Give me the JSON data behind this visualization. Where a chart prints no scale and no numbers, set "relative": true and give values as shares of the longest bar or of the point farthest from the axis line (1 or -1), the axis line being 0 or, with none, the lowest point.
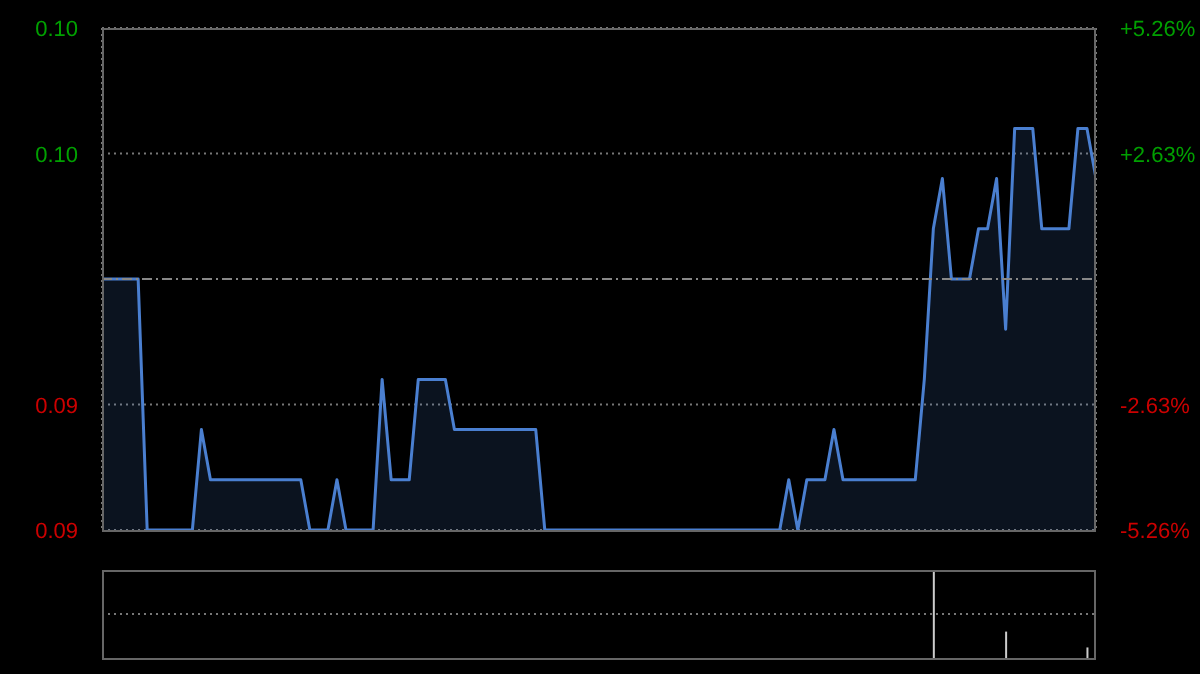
{
  "chart_data": [
    {
      "type": "area",
      "categories": [
        null,
        null,
        null,
        null,
        null,
        null,
        null,
        null,
        null,
        null,
        null,
        null,
        null,
        null,
        null,
        null,
        null,
        null,
        null,
        null,
        null,
        null,
        null,
        null,
        null,
        null,
        null,
        null,
        null,
        null,
        null,
        null,
        null,
        null,
        null,
        null,
        null,
        null,
        null,
        null,
        null,
        null,
        null,
        null,
        null,
        null,
        null,
        null,
        null,
        null,
        null,
        null,
        null,
        null,
        null,
        null,
        null,
        null,
        null,
        null,
        null,
        null,
        null,
        null,
        null,
        null,
        null,
        null,
        null,
        null,
        null,
        null,
        null,
        null,
        null,
        null,
        null,
        null,
        null,
        null,
        null,
        null,
        null,
        null,
        null,
        null,
        null,
        null,
        null,
        null,
        null,
        null,
        null,
        null,
        null,
        null,
        null,
        null,
        null,
        null,
        null,
        null,
        null,
        null,
        null,
        null,
        null,
        null,
        null,
        null,
        null
      ],
      "series": [
        {
          "color": "#4a7fd0",
          "values": [
            0.095,
            0.095,
            0.095,
            0.095,
            0.095,
            0.09,
            0.09,
            0.09,
            0.09,
            0.09,
            0.09,
            0.092,
            0.091,
            0.091,
            0.091,
            0.091,
            0.091,
            0.091,
            0.091,
            0.091,
            0.091,
            0.091,
            0.091,
            0.09,
            0.09,
            0.09,
            0.091,
            0.09,
            0.09,
            0.09,
            0.09,
            0.093,
            0.091,
            0.091,
            0.091,
            0.093,
            0.093,
            0.093,
            0.093,
            0.092,
            0.092,
            0.092,
            0.092,
            0.092,
            0.092,
            0.092,
            0.092,
            0.092,
            0.092,
            0.09,
            0.09,
            0.09,
            0.09,
            0.09,
            0.09,
            0.09,
            0.09,
            0.09,
            0.09,
            0.09,
            0.09,
            0.09,
            0.09,
            0.09,
            0.09,
            0.09,
            0.09,
            0.09,
            0.09,
            0.09,
            0.09,
            0.09,
            0.09,
            0.09,
            0.09,
            0.09,
            0.091,
            0.09,
            0.091,
            0.091,
            0.091,
            0.092,
            0.091,
            0.091,
            0.091,
            0.091,
            0.091,
            0.091,
            0.091,
            0.091,
            0.091,
            0.093,
            0.096,
            0.097,
            0.095,
            0.095,
            0.095,
            0.096,
            0.096,
            0.097,
            0.094,
            0.098,
            0.098,
            0.098,
            0.096,
            0.096,
            0.096,
            0.096,
            0.098,
            0.098,
            0.097
          ]
        }
      ],
      "ylim": [
        0.09,
        0.1
      ],
      "yticks": [
        {
          "value": 0.1,
          "label": "0.10"
        },
        {
          "value": 0.0975,
          "label": "0.10"
        },
        {
          "value": 0.0925,
          "label": "0.09"
        },
        {
          "value": 0.09,
          "label": "0.09"
        }
      ],
      "y2lim": [
        -5.26,
        5.26
      ],
      "y2ticks": [
        {
          "value": 5.26,
          "label": "+5.26%"
        },
        {
          "value": 2.63,
          "label": "+2.63%"
        },
        {
          "value": -2.63,
          "label": "-2.63%"
        },
        {
          "value": -5.26,
          "label": "-5.26%"
        }
      ],
      "ref_lines": [
        {
          "axis": "y",
          "value": 0.095,
          "color": "#888888",
          "line_style": "dashed"
        }
      ],
      "grid": true,
      "marker": "none",
      "line_style": "solid",
      "legend": false
    },
    {
      "type": "bar",
      "relative": true,
      "categories": [
        null,
        null,
        null,
        null,
        null,
        null,
        null,
        null,
        null,
        null,
        null,
        null,
        null,
        null,
        null,
        null,
        null,
        null,
        null,
        null,
        null,
        null,
        null,
        null,
        null,
        null,
        null,
        null,
        null,
        null,
        null,
        null,
        null,
        null,
        null,
        null,
        null,
        null,
        null,
        null,
        null,
        null,
        null,
        null,
        null,
        null,
        null,
        null,
        null,
        null,
        null,
        null,
        null,
        null,
        null,
        null,
        null,
        null,
        null,
        null,
        null,
        null,
        null,
        null,
        null,
        null,
        null,
        null,
        null,
        null,
        null,
        null,
        null,
        null,
        null,
        null,
        null,
        null,
        null,
        null,
        null,
        null,
        null,
        null,
        null,
        null,
        null,
        null,
        null,
        null,
        null,
        null,
        null,
        null,
        null,
        null,
        null,
        null,
        null,
        null,
        null,
        null,
        null,
        null,
        null,
        null,
        null,
        null,
        null,
        null,
        null
      ],
      "series": [
        {
          "color": "#cccccc",
          "values": [
            null,
            null,
            null,
            null,
            null,
            null,
            null,
            null,
            null,
            null,
            null,
            null,
            null,
            null,
            null,
            null,
            null,
            null,
            null,
            null,
            null,
            null,
            null,
            null,
            null,
            null,
            null,
            null,
            null,
            null,
            null,
            null,
            null,
            null,
            null,
            null,
            null,
            null,
            null,
            null,
            null,
            null,
            null,
            null,
            null,
            null,
            null,
            null,
            null,
            null,
            null,
            null,
            null,
            null,
            null,
            null,
            null,
            null,
            null,
            null,
            null,
            null,
            null,
            null,
            null,
            null,
            null,
            null,
            null,
            null,
            null,
            null,
            null,
            null,
            null,
            null,
            null,
            null,
            null,
            null,
            null,
            null,
            null,
            null,
            null,
            null,
            null,
            null,
            null,
            null,
            null,
            null,
            1,
            null,
            null,
            null,
            null,
            null,
            null,
            null,
            0.3,
            null,
            null,
            null,
            null,
            null,
            null,
            null,
            null,
            0.12,
            null
          ]
        }
      ],
      "ref_lines": [
        {
          "axis": "y",
          "value": 0.5,
          "color": "#777777",
          "line_style": "dotted"
        }
      ],
      "legend": false
    }
  ]
}
